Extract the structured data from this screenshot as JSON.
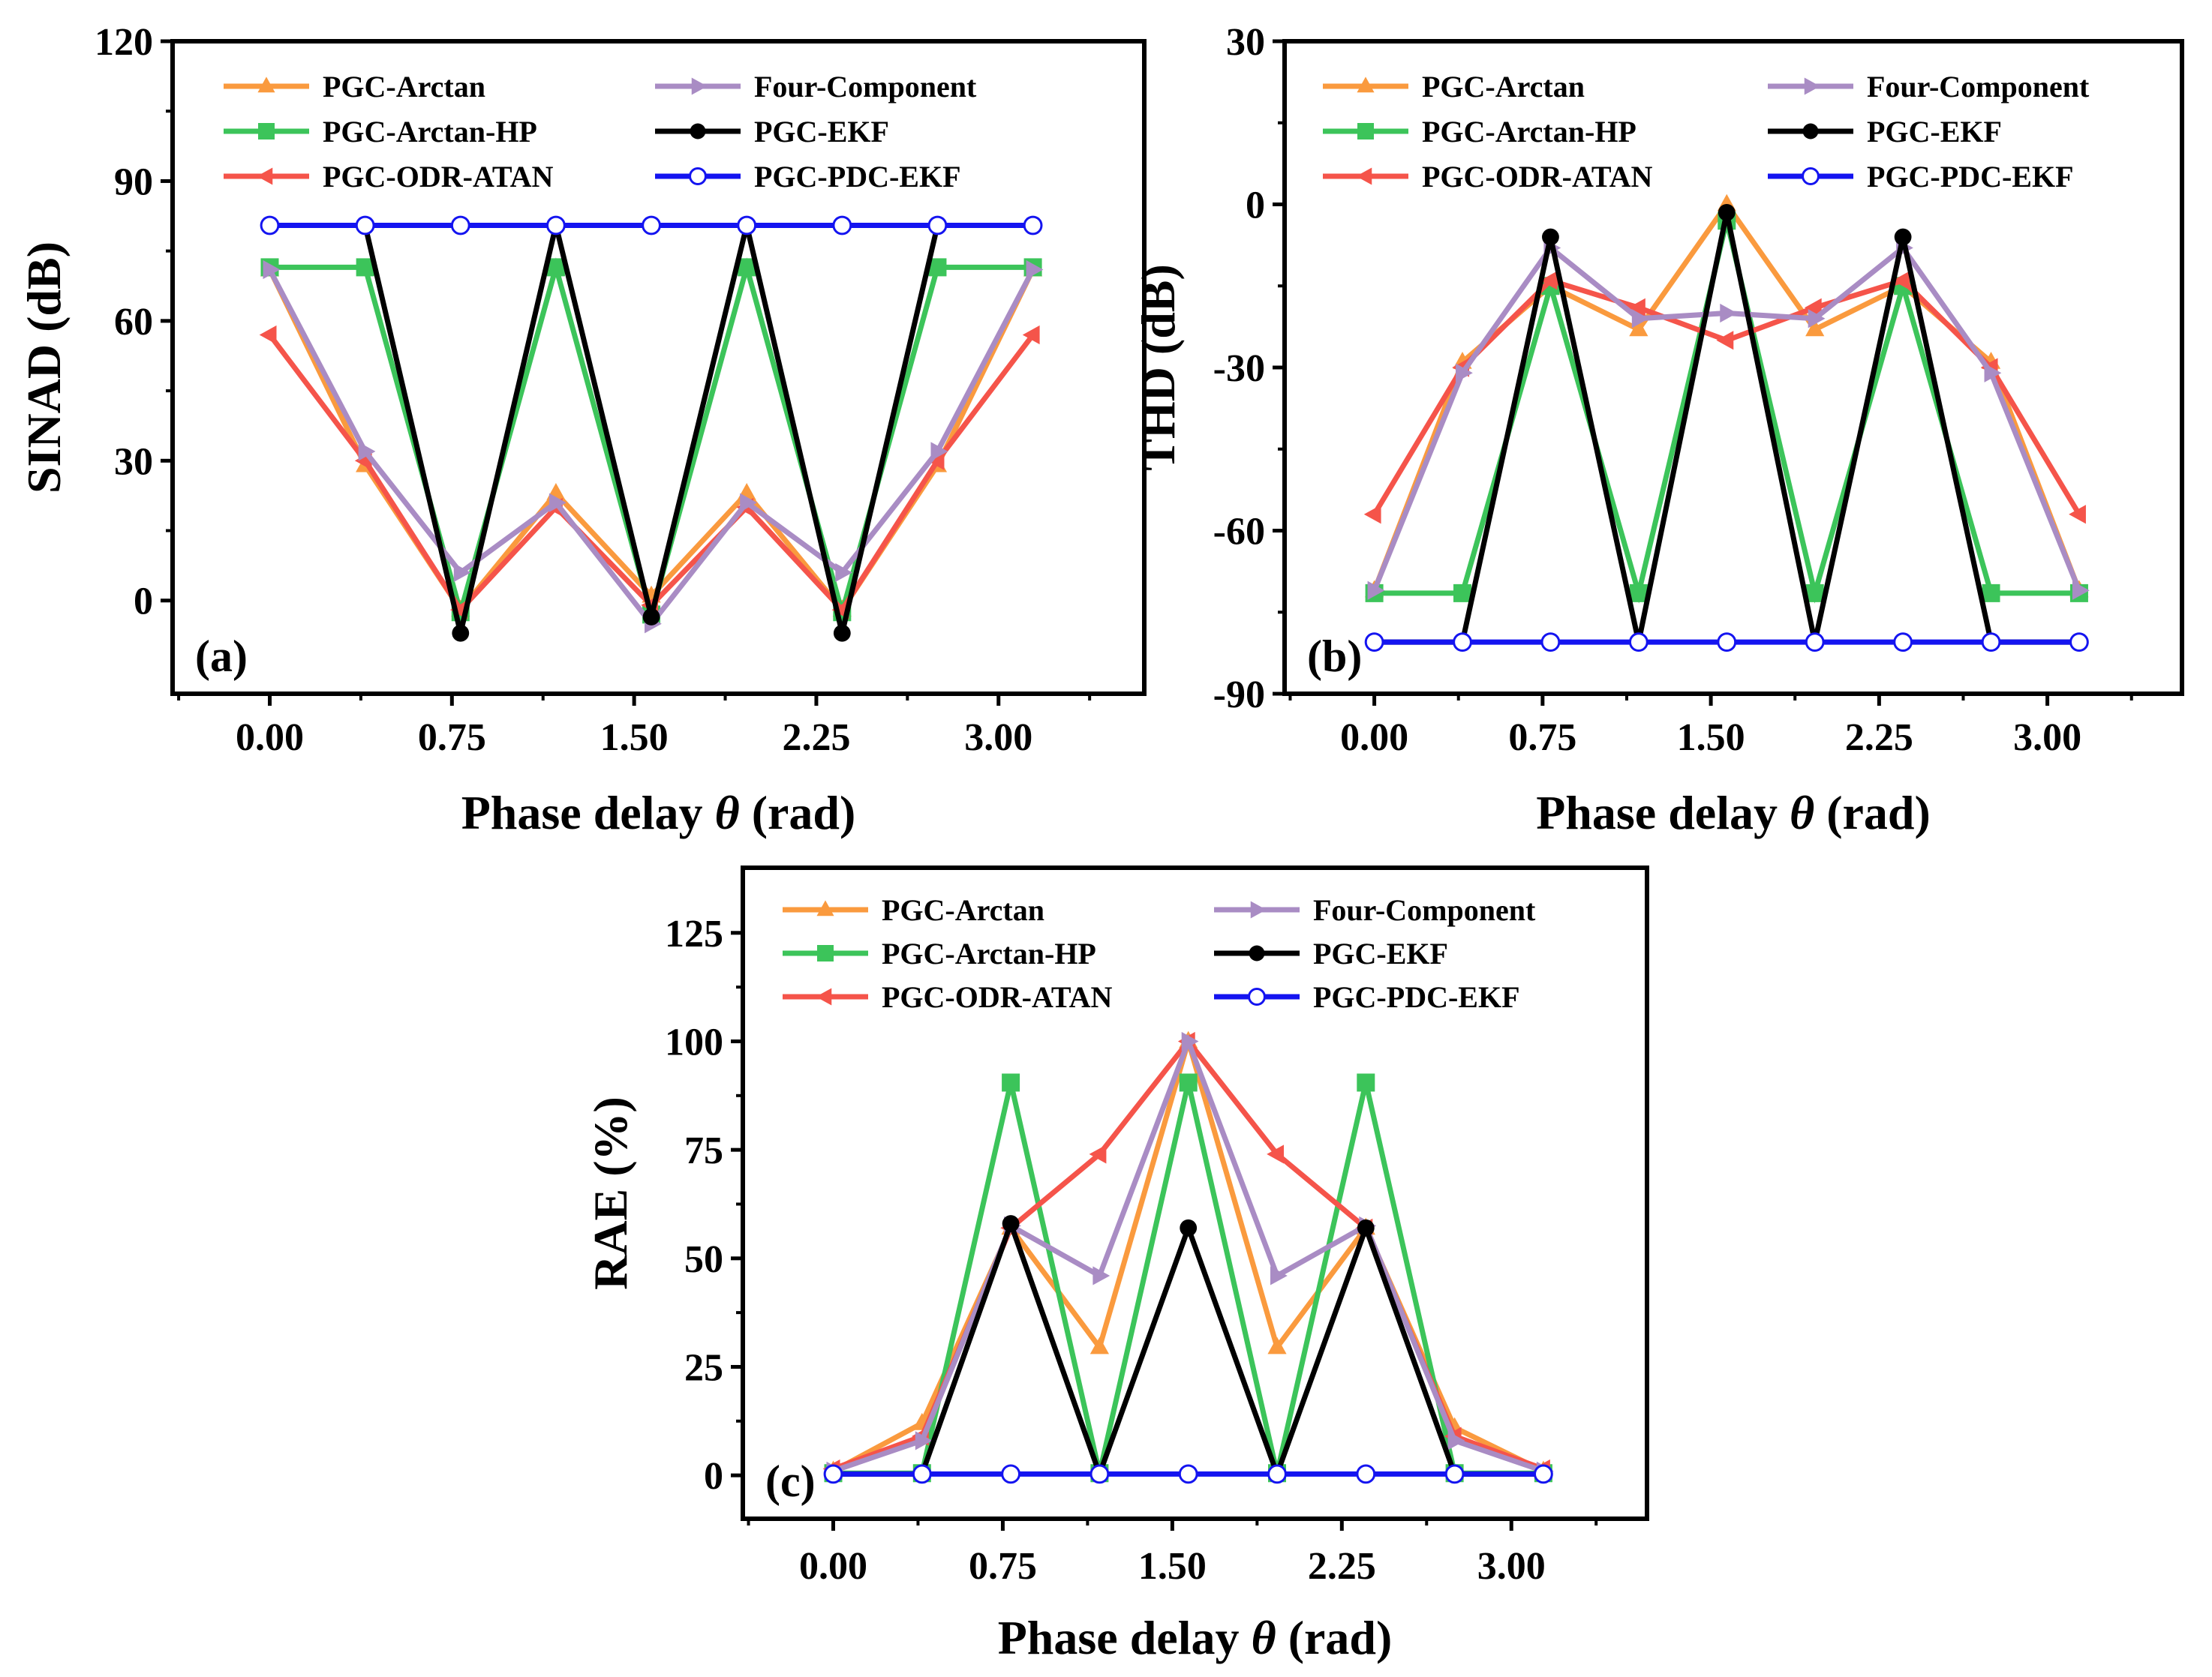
{
  "colors": {
    "PGC-Arctan": "#FA9A3E",
    "PGC-Arctan-HP": "#3CC45A",
    "PGC-ODR-ATAN": "#F5544A",
    "Four-Component": "#A98CC4",
    "PGC-EKF": "#000000",
    "PGC-PDC-EKF": "#1414F0"
  },
  "chart_data": [
    {
      "type": "line",
      "panel_label": "(a)",
      "ylabel": "SINAD (dB)",
      "xlabel_prefix": "Phase delay ",
      "xlabel_symbol": "θ",
      "xlabel_suffix": "(rad)",
      "xlim": [
        -0.4,
        3.6
      ],
      "ylim": [
        -20,
        120
      ],
      "xticks": [
        0.0,
        0.75,
        1.5,
        2.25,
        3.0
      ],
      "xtick_labels": [
        "0.00",
        "0.75",
        "1.50",
        "2.25",
        "3.00"
      ],
      "yticks": [
        0,
        30,
        60,
        90,
        120
      ],
      "ytick_labels": [
        "0",
        "30",
        "60",
        "90",
        "120"
      ],
      "x": [
        0.0,
        0.3927,
        0.7854,
        1.1781,
        1.5708,
        1.9635,
        2.3562,
        2.7489,
        3.1416
      ],
      "series": [
        {
          "name": "PGC-Arctan",
          "marker": "triangle-up",
          "values": [
            71,
            29,
            -2,
            23,
            1,
            23,
            -2,
            29,
            71
          ]
        },
        {
          "name": "PGC-Arctan-HP",
          "marker": "square",
          "values": [
            71.5,
            71.5,
            -2.5,
            71.5,
            -3,
            71.5,
            -2.5,
            71.5,
            71.5
          ]
        },
        {
          "name": "PGC-ODR-ATAN",
          "marker": "triangle-left",
          "values": [
            57,
            30,
            -2,
            20,
            -1,
            20,
            -2,
            30,
            57
          ]
        },
        {
          "name": "Four-Component",
          "marker": "triangle-right",
          "values": [
            71,
            32,
            6,
            21,
            -5,
            21,
            6,
            32,
            71
          ]
        },
        {
          "name": "PGC-EKF",
          "marker": "circle-filled",
          "values": [
            80.5,
            80.5,
            -7,
            80.5,
            -3.5,
            80.5,
            -7,
            80.5,
            80.5
          ]
        },
        {
          "name": "PGC-PDC-EKF",
          "marker": "circle-open",
          "values": [
            80.5,
            80.5,
            80.5,
            80.5,
            80.5,
            80.5,
            80.5,
            80.5,
            80.5
          ]
        }
      ]
    },
    {
      "type": "line",
      "panel_label": "(b)",
      "ylabel": "THD (dB)",
      "xlabel_prefix": "Phase delay ",
      "xlabel_symbol": "θ",
      "xlabel_suffix": "(rad)",
      "xlim": [
        -0.4,
        3.6
      ],
      "ylim": [
        -90,
        30
      ],
      "xticks": [
        0.0,
        0.75,
        1.5,
        2.25,
        3.0
      ],
      "xtick_labels": [
        "0.00",
        "0.75",
        "1.50",
        "2.25",
        "3.00"
      ],
      "yticks": [
        -90,
        -60,
        -30,
        0,
        30
      ],
      "ytick_labels": [
        "-90",
        "-60",
        "-30",
        "0",
        "30"
      ],
      "x": [
        0.0,
        0.3927,
        0.7854,
        1.1781,
        1.5708,
        1.9635,
        2.3562,
        2.7489,
        3.1416
      ],
      "series": [
        {
          "name": "PGC-Arctan",
          "marker": "triangle-up",
          "values": [
            -71,
            -29,
            -15,
            -23,
            0,
            -23,
            -15,
            -29,
            -71
          ]
        },
        {
          "name": "PGC-Arctan-HP",
          "marker": "square",
          "values": [
            -71.5,
            -71.5,
            -15,
            -71.5,
            -3,
            -71.5,
            -15,
            -71.5,
            -71.5
          ]
        },
        {
          "name": "PGC-ODR-ATAN",
          "marker": "triangle-left",
          "values": [
            -57,
            -30,
            -14,
            -19,
            -25,
            -19,
            -14,
            -30,
            -57
          ]
        },
        {
          "name": "Four-Component",
          "marker": "triangle-right",
          "values": [
            -71,
            -31,
            -8,
            -21,
            -20,
            -21,
            -8,
            -31,
            -71
          ]
        },
        {
          "name": "PGC-EKF",
          "marker": "circle-filled",
          "values": [
            -80.5,
            -80.5,
            -6,
            -80.5,
            -1.5,
            -80.5,
            -6,
            -80.5,
            -80.5
          ]
        },
        {
          "name": "PGC-PDC-EKF",
          "marker": "circle-open",
          "values": [
            -80.5,
            -80.5,
            -80.5,
            -80.5,
            -80.5,
            -80.5,
            -80.5,
            -80.5,
            -80.5
          ]
        }
      ]
    },
    {
      "type": "line",
      "panel_label": "(c)",
      "ylabel": "RAE (%)",
      "xlabel_prefix": "Phase delay ",
      "xlabel_symbol": "θ",
      "xlabel_suffix": "(rad)",
      "xlim": [
        -0.4,
        3.6
      ],
      "ylim": [
        -10,
        140
      ],
      "xticks": [
        0.0,
        0.75,
        1.5,
        2.25,
        3.0
      ],
      "xtick_labels": [
        "0.00",
        "0.75",
        "1.50",
        "2.25",
        "3.00"
      ],
      "yticks": [
        0,
        25,
        50,
        75,
        100,
        125
      ],
      "ytick_labels": [
        "0",
        "25",
        "50",
        "75",
        "100",
        "125"
      ],
      "x": [
        0.0,
        0.3927,
        0.7854,
        1.1781,
        1.5708,
        1.9635,
        2.3562,
        2.7489,
        3.1416
      ],
      "series": [
        {
          "name": "PGC-Arctan",
          "marker": "triangle-up",
          "values": [
            1,
            12,
            57,
            29.5,
            100,
            29.5,
            57,
            11,
            1
          ]
        },
        {
          "name": "PGC-Arctan-HP",
          "marker": "square",
          "values": [
            0.5,
            0.5,
            90.5,
            0.5,
            90.5,
            0.5,
            90.5,
            0.5,
            0.5
          ]
        },
        {
          "name": "PGC-ODR-ATAN",
          "marker": "triangle-left",
          "values": [
            1.5,
            9,
            57,
            74,
            100,
            74,
            57,
            9,
            1.5
          ]
        },
        {
          "name": "Four-Component",
          "marker": "triangle-right",
          "values": [
            1,
            8,
            57.5,
            46,
            100,
            46,
            57.5,
            8,
            1
          ]
        },
        {
          "name": "PGC-EKF",
          "marker": "circle-filled",
          "values": [
            0.3,
            0.3,
            58,
            0.3,
            57,
            0.3,
            57,
            0.3,
            0.3
          ]
        },
        {
          "name": "PGC-PDC-EKF",
          "marker": "circle-open",
          "values": [
            0.3,
            0.3,
            0.3,
            0.3,
            0.3,
            0.3,
            0.3,
            0.3,
            0.3
          ]
        }
      ]
    }
  ]
}
